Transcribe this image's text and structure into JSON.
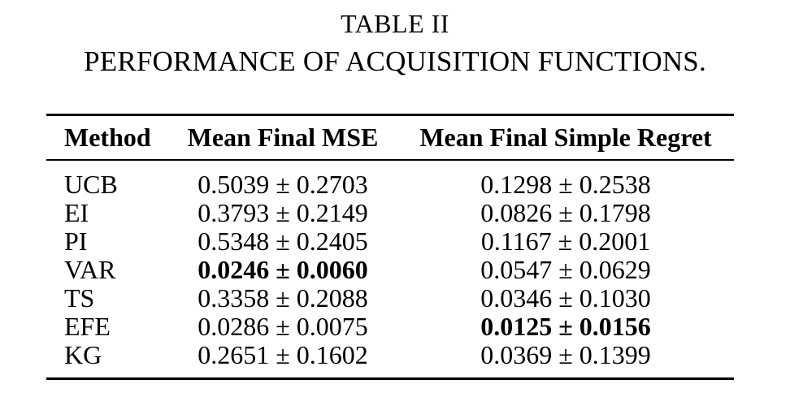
{
  "caption": {
    "label": "TABLE II",
    "title": "PERFORMANCE OF ACQUISITION FUNCTIONS."
  },
  "table": {
    "columns": [
      "Method",
      "Mean Final MSE",
      "Mean Final Simple Regret"
    ],
    "rows": [
      {
        "method": "UCB",
        "mse": "0.5039 ± 0.2703",
        "regret": "0.1298 ± 0.2538",
        "mse_bold": false,
        "regret_bold": false
      },
      {
        "method": "EI",
        "mse": "0.3793 ± 0.2149",
        "regret": "0.0826 ± 0.1798",
        "mse_bold": false,
        "regret_bold": false
      },
      {
        "method": "PI",
        "mse": "0.5348 ± 0.2405",
        "regret": "0.1167 ± 0.2001",
        "mse_bold": false,
        "regret_bold": false
      },
      {
        "method": "VAR",
        "mse": "0.0246 ± 0.0060",
        "regret": "0.0547 ± 0.0629",
        "mse_bold": true,
        "regret_bold": false
      },
      {
        "method": "TS",
        "mse": "0.3358 ± 0.2088",
        "regret": "0.0346 ± 0.1030",
        "mse_bold": false,
        "regret_bold": false
      },
      {
        "method": "EFE",
        "mse": "0.0286 ± 0.0075",
        "regret": "0.0125 ± 0.0156",
        "mse_bold": false,
        "regret_bold": true
      },
      {
        "method": "KG",
        "mse": "0.2651 ± 0.1602",
        "regret": "0.0369 ± 0.1399",
        "mse_bold": false,
        "regret_bold": false
      }
    ]
  },
  "colors": {
    "text": "#000000",
    "background": "#ffffff"
  }
}
